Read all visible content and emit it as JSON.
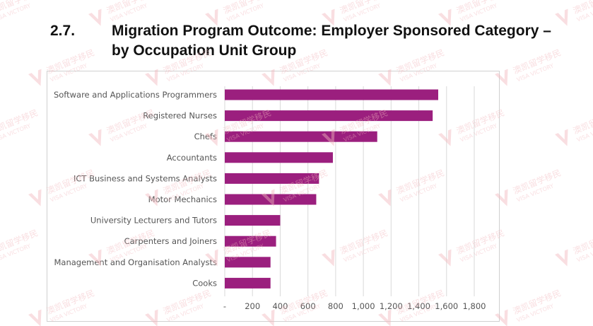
{
  "heading": {
    "number": "2.7.",
    "title_line1": "Migration Program Outcome: Employer Sponsored Category –",
    "title_line2": "by Occupation Unit Group"
  },
  "watermark": {
    "logo_text": "澳凯留学移民",
    "logo_subtext": "VISA VICTORY",
    "color": "#f2b8bd"
  },
  "chart_data": {
    "type": "bar",
    "orientation": "horizontal",
    "categories": [
      "Software and Applications Programmers",
      "Registered Nurses",
      "Chefs",
      "Accountants",
      "ICT Business and Systems Analysts",
      "Motor Mechanics",
      "University Lecturers and Tutors",
      "Carpenters and Joiners",
      "Management and Organisation Analysts",
      "Cooks"
    ],
    "values": [
      1540,
      1500,
      1100,
      780,
      680,
      660,
      400,
      370,
      330,
      330
    ],
    "xlim": [
      0,
      1800
    ],
    "xticks": [
      0,
      200,
      400,
      600,
      800,
      1000,
      1200,
      1400,
      1600,
      1800
    ],
    "xtick_labels": [
      "-",
      "200",
      "400",
      "600",
      "800",
      "1,000",
      "1,200",
      "1,400",
      "1,600",
      "1,800"
    ],
    "grid": true,
    "bar_color": "#9b1f7e",
    "grid_color": "#d9d9d9"
  }
}
